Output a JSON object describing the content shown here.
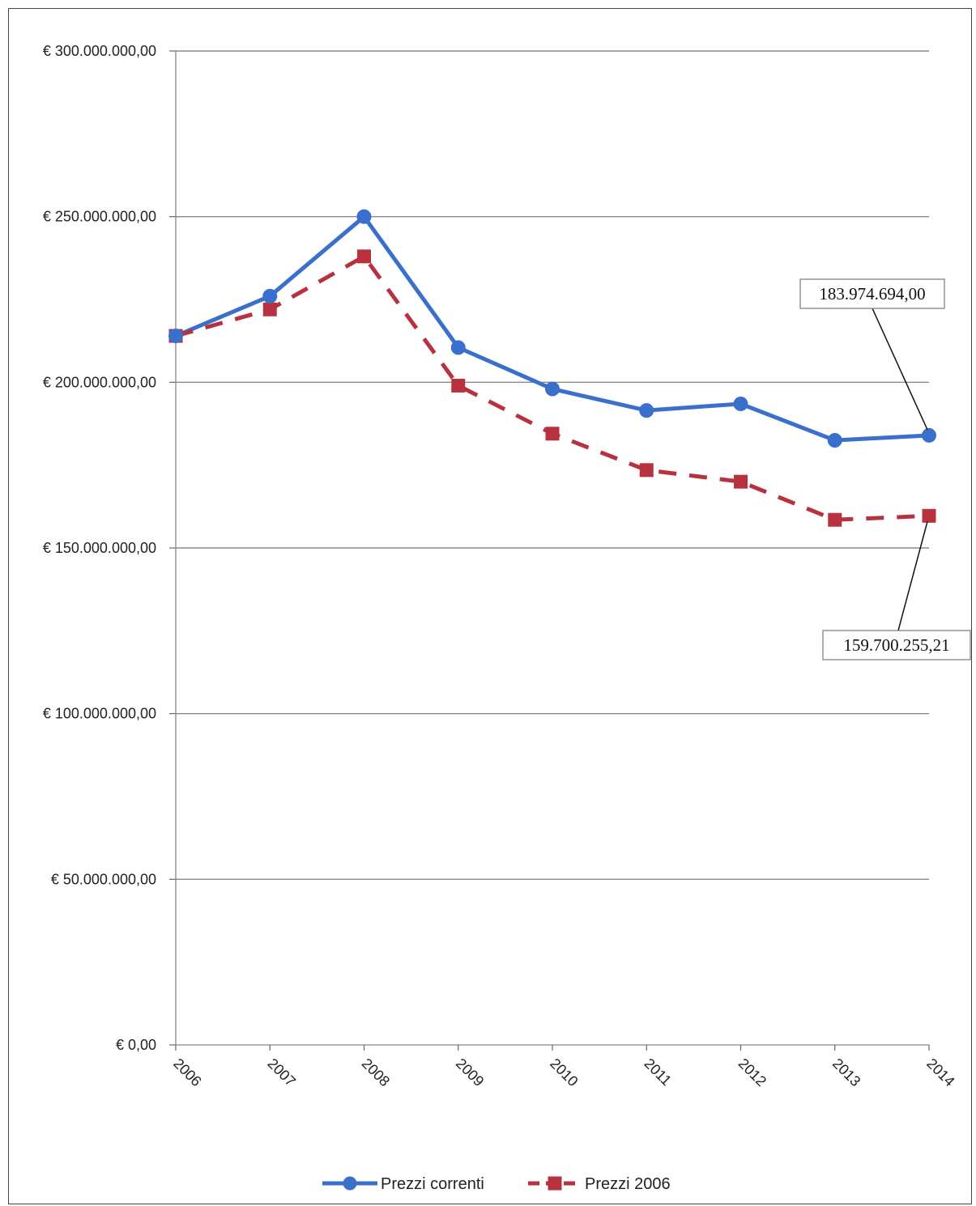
{
  "chart_data": {
    "type": "line",
    "title": "",
    "xlabel": "",
    "ylabel": "",
    "x": [
      "2006",
      "2007",
      "2008",
      "2009",
      "2010",
      "2011",
      "2012",
      "2013",
      "2014"
    ],
    "ylim": [
      0,
      300000000
    ],
    "yticks": [
      0,
      50000000,
      100000000,
      150000000,
      200000000,
      250000000,
      300000000
    ],
    "ytick_labels": [
      "€ 0,00",
      "€ 50.000.000,00",
      "€ 100.000.000,00",
      "€ 150.000.000,00",
      "€ 200.000.000,00",
      "€ 250.000.000,00",
      "€ 300.000.000,00"
    ],
    "grid": true,
    "legend_position": "bottom",
    "series": [
      {
        "name": "Prezzi correnti",
        "color": "#3a6fcc",
        "marker": "circle",
        "line_style": "solid",
        "values": [
          214000000,
          226000000,
          250000000,
          210500000,
          198000000,
          191500000,
          193500000,
          182500000,
          183974694
        ]
      },
      {
        "name": "Prezzi 2006",
        "color": "#b8313f",
        "marker": "square",
        "line_style": "dashed",
        "values": [
          214000000,
          222000000,
          238000000,
          199000000,
          184500000,
          173500000,
          170000000,
          158500000,
          159700255.21
        ]
      }
    ],
    "annotations": [
      {
        "text": "183.974.694,00",
        "series": 0,
        "point": 8
      },
      {
        "text": "159.700.255,21",
        "series": 1,
        "point": 8
      }
    ]
  }
}
